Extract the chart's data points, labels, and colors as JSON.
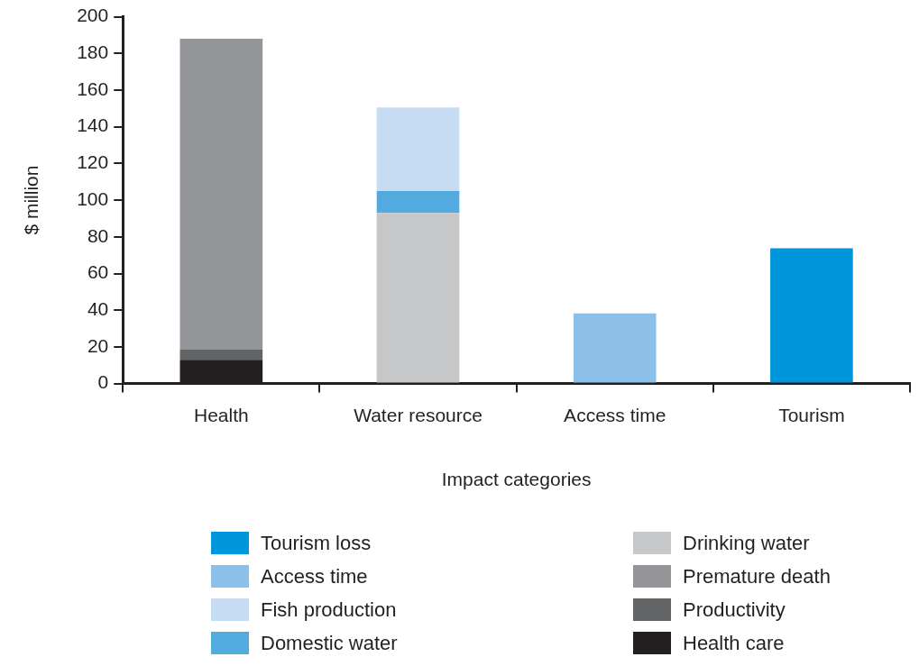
{
  "chart_data": {
    "type": "bar",
    "stacked": true,
    "xlabel": "Impact categories",
    "ylabel": "$ million",
    "categories": [
      "Health",
      "Water resource",
      "Access time",
      "Tourism"
    ],
    "ylim": [
      0,
      200
    ],
    "yticks": [
      0,
      20,
      40,
      60,
      80,
      100,
      120,
      140,
      160,
      180,
      200
    ],
    "grid": false,
    "legend": "bottom",
    "series": [
      {
        "name": "Health care",
        "color": "#231f20",
        "values": [
          13,
          null,
          null,
          null
        ]
      },
      {
        "name": "Productivity",
        "color": "#636466",
        "values": [
          5.5,
          null,
          null,
          null
        ]
      },
      {
        "name": "Premature death",
        "color": "#939598",
        "values": [
          169.5,
          null,
          null,
          null
        ]
      },
      {
        "name": "Drinking water",
        "color": "#c6c7c9",
        "values": [
          null,
          93,
          null,
          null
        ]
      },
      {
        "name": "Domestic water",
        "color": "#52aade",
        "values": [
          null,
          12,
          null,
          null
        ]
      },
      {
        "name": "Fish production",
        "color": "#c5dcf2",
        "values": [
          null,
          45.5,
          null,
          null
        ]
      },
      {
        "name": "Access time",
        "color": "#8cc0e8",
        "values": [
          null,
          null,
          38.3,
          null
        ]
      },
      {
        "name": "Tourism loss",
        "color": "#0096db",
        "values": [
          null,
          null,
          null,
          73.8
        ]
      }
    ]
  }
}
